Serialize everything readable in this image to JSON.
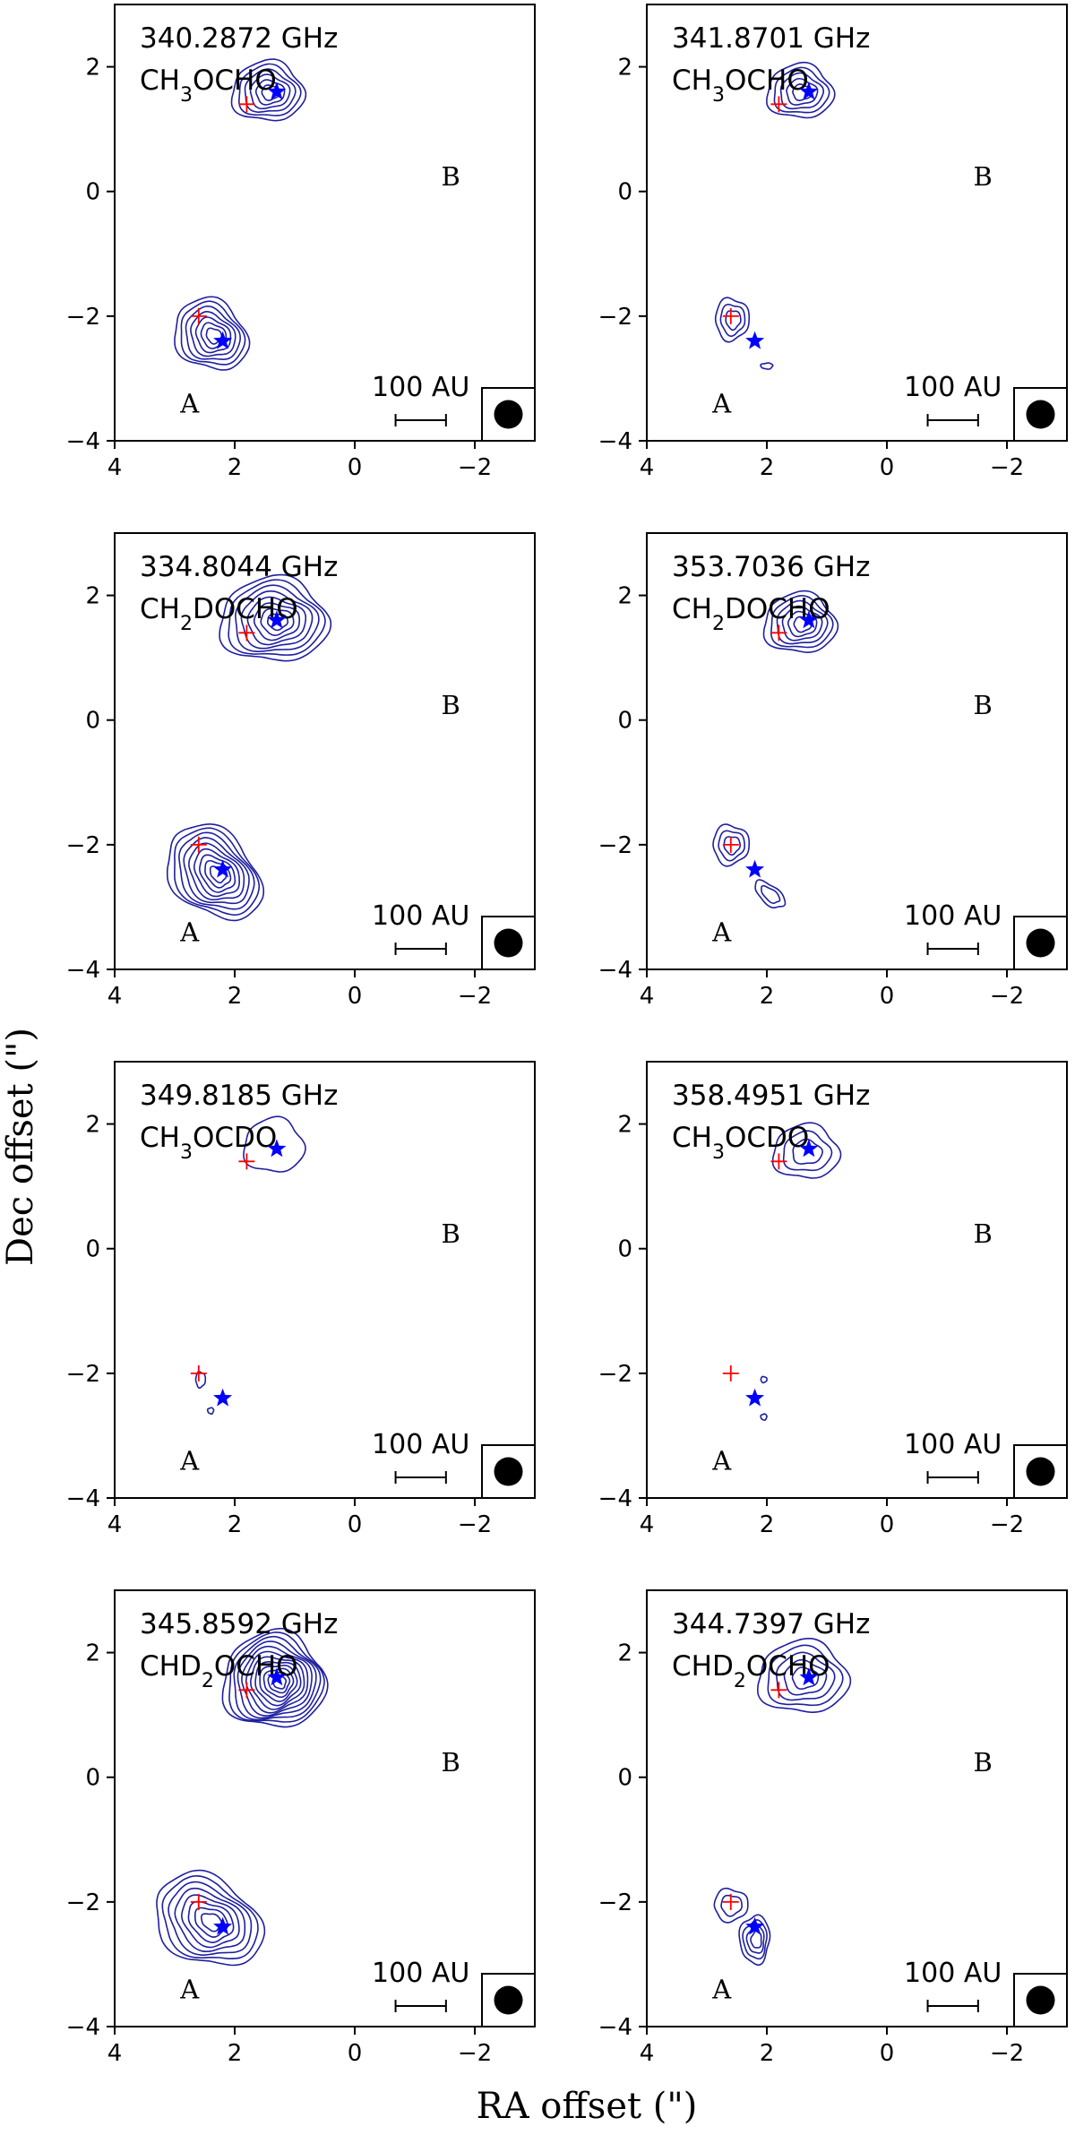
{
  "chart_data": {
    "type": "contour",
    "xlabel": "RA offset (\")",
    "ylabel": "Dec offset (\")",
    "xlim": [
      4,
      -3
    ],
    "ylim": [
      -4,
      3
    ],
    "xticks": [
      4,
      2,
      0,
      -2
    ],
    "yticks": [
      2,
      0,
      -2,
      -4
    ],
    "tick_labels_x": [
      "4",
      "2",
      "0",
      "−2"
    ],
    "tick_labels_y": [
      "2",
      "0",
      "−2",
      "−4"
    ],
    "scale_bar_label": "100 AU",
    "source_labels": {
      "A": "A",
      "B": "B"
    },
    "markers": {
      "stars": [
        [
          2.2,
          -2.4
        ],
        [
          1.3,
          1.6
        ]
      ],
      "crosses": [
        [
          2.6,
          -2.0
        ],
        [
          1.8,
          1.4
        ]
      ],
      "star_color": "#0000ff",
      "cross_color": "#ff0000",
      "contour_color": "#1f1fa0"
    },
    "panels": [
      {
        "freq": "340.2872 GHz",
        "mol": "CH3OCHO",
        "sources": [
          {
            "x": 1.45,
            "y": 1.6,
            "rx": 0.6,
            "ry": 0.5,
            "levels": 6,
            "angle": 0
          },
          {
            "x": 2.4,
            "y": -2.3,
            "rx": 0.65,
            "ry": 0.55,
            "levels": 7,
            "angle": 40
          }
        ]
      },
      {
        "freq": "341.8701 GHz",
        "mol": "CH3OCHO",
        "sources": [
          {
            "x": 1.45,
            "y": 1.6,
            "rx": 0.55,
            "ry": 0.45,
            "levels": 5,
            "angle": 0
          },
          {
            "x": 2.58,
            "y": -2.05,
            "rx": 0.28,
            "ry": 0.35,
            "levels": 3,
            "angle": 0
          },
          {
            "x": 2.0,
            "y": -2.8,
            "rx": 0.1,
            "ry": 0.05,
            "levels": 1,
            "angle": 0
          }
        ]
      },
      {
        "freq": "334.8044 GHz",
        "mol": "CH2DOCHO",
        "sources": [
          {
            "x": 1.35,
            "y": 1.6,
            "rx": 0.9,
            "ry": 0.7,
            "levels": 8,
            "angle": 0
          },
          {
            "x": 2.35,
            "y": -2.45,
            "rx": 0.9,
            "ry": 0.65,
            "levels": 9,
            "angle": 45
          }
        ]
      },
      {
        "freq": "353.7036 GHz",
        "mol": "CH2DOCHO",
        "sources": [
          {
            "x": 1.45,
            "y": 1.55,
            "rx": 0.6,
            "ry": 0.5,
            "levels": 6,
            "angle": 0
          },
          {
            "x": 2.6,
            "y": -2.0,
            "rx": 0.3,
            "ry": 0.33,
            "levels": 3,
            "angle": 0
          },
          {
            "x": 1.95,
            "y": -2.8,
            "rx": 0.3,
            "ry": 0.15,
            "levels": 2,
            "angle": 40
          }
        ]
      },
      {
        "freq": "349.8185 GHz",
        "mol": "CH3OCDO",
        "sources": [
          {
            "x": 1.35,
            "y": 1.65,
            "rx": 0.5,
            "ry": 0.45,
            "levels": 1,
            "angle": 0
          },
          {
            "x": 2.57,
            "y": -2.1,
            "rx": 0.08,
            "ry": 0.13,
            "levels": 1,
            "angle": 0
          },
          {
            "x": 2.4,
            "y": -2.6,
            "rx": 0.05,
            "ry": 0.05,
            "levels": 1,
            "angle": 0
          }
        ]
      },
      {
        "freq": "358.4951 GHz",
        "mol": "CH3OCDO",
        "sources": [
          {
            "x": 1.35,
            "y": 1.55,
            "rx": 0.55,
            "ry": 0.45,
            "levels": 3,
            "angle": 0
          },
          {
            "x": 2.05,
            "y": -2.1,
            "rx": 0.05,
            "ry": 0.05,
            "levels": 1,
            "angle": 0
          },
          {
            "x": 2.05,
            "y": -2.7,
            "rx": 0.05,
            "ry": 0.05,
            "levels": 1,
            "angle": 0
          }
        ]
      },
      {
        "freq": "345.8592 GHz",
        "mol": "CHD2OCHO",
        "sources": [
          {
            "x": 1.35,
            "y": 1.55,
            "rx": 0.85,
            "ry": 0.8,
            "levels": 12,
            "angle": 0
          },
          {
            "x": 2.45,
            "y": -2.3,
            "rx": 0.95,
            "ry": 0.7,
            "levels": 8,
            "angle": 30
          }
        ]
      },
      {
        "freq": "344.7397 GHz",
        "mol": "CHD2OCHO",
        "sources": [
          {
            "x": 1.4,
            "y": 1.6,
            "rx": 0.75,
            "ry": 0.6,
            "levels": 5,
            "angle": 0
          },
          {
            "x": 2.6,
            "y": -2.05,
            "rx": 0.28,
            "ry": 0.27,
            "levels": 2,
            "angle": 0
          },
          {
            "x": 2.2,
            "y": -2.6,
            "rx": 0.25,
            "ry": 0.4,
            "levels": 4,
            "angle": 0
          }
        ]
      }
    ]
  }
}
